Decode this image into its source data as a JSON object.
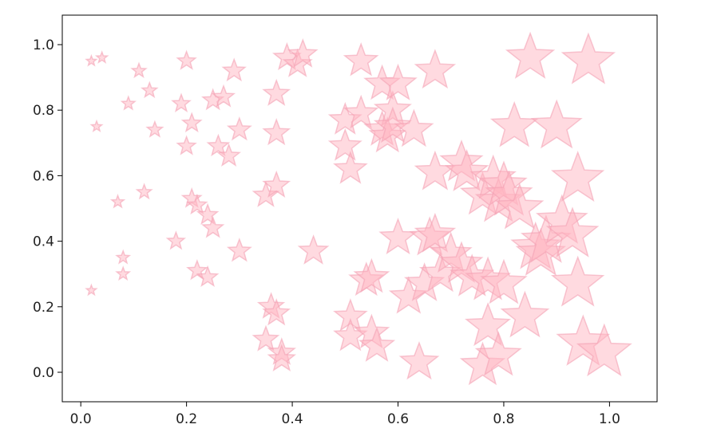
{
  "chart_data": {
    "type": "scatter",
    "marker": "star",
    "marker_color": "#ffb6c1",
    "marker_alpha": 0.5,
    "marker_edge_color": "#f4a2b4",
    "frame_color": "#000000",
    "grid": false,
    "legend": "none",
    "xlim": [
      -0.035,
      1.09
    ],
    "ylim": [
      -0.09,
      1.09
    ],
    "x_ticks": [
      0.0,
      0.2,
      0.4,
      0.6,
      0.8,
      1.0
    ],
    "x_tick_labels": [
      "0.0",
      "0.2",
      "0.4",
      "0.6",
      "0.8",
      "1.0"
    ],
    "y_ticks": [
      0.0,
      0.2,
      0.4,
      0.6,
      0.8,
      1.0
    ],
    "y_tick_labels": [
      "0.0",
      "0.2",
      "0.4",
      "0.6",
      "0.8",
      "1.0"
    ],
    "note_size": "marker size grows with x value",
    "points": [
      {
        "x": 0.02,
        "y": 0.95
      },
      {
        "x": 0.04,
        "y": 0.96
      },
      {
        "x": 0.03,
        "y": 0.75
      },
      {
        "x": 0.02,
        "y": 0.25
      },
      {
        "x": 0.07,
        "y": 0.52
      },
      {
        "x": 0.08,
        "y": 0.35
      },
      {
        "x": 0.08,
        "y": 0.3
      },
      {
        "x": 0.09,
        "y": 0.82
      },
      {
        "x": 0.11,
        "y": 0.92
      },
      {
        "x": 0.12,
        "y": 0.55
      },
      {
        "x": 0.13,
        "y": 0.86
      },
      {
        "x": 0.14,
        "y": 0.74
      },
      {
        "x": 0.18,
        "y": 0.4
      },
      {
        "x": 0.19,
        "y": 0.82
      },
      {
        "x": 0.2,
        "y": 0.95
      },
      {
        "x": 0.2,
        "y": 0.69
      },
      {
        "x": 0.21,
        "y": 0.76
      },
      {
        "x": 0.21,
        "y": 0.53
      },
      {
        "x": 0.22,
        "y": 0.51
      },
      {
        "x": 0.22,
        "y": 0.31
      },
      {
        "x": 0.24,
        "y": 0.29
      },
      {
        "x": 0.24,
        "y": 0.48
      },
      {
        "x": 0.25,
        "y": 0.44
      },
      {
        "x": 0.25,
        "y": 0.83
      },
      {
        "x": 0.26,
        "y": 0.69
      },
      {
        "x": 0.27,
        "y": 0.84
      },
      {
        "x": 0.28,
        "y": 0.66
      },
      {
        "x": 0.29,
        "y": 0.92
      },
      {
        "x": 0.3,
        "y": 0.74
      },
      {
        "x": 0.3,
        "y": 0.37
      },
      {
        "x": 0.35,
        "y": 0.54
      },
      {
        "x": 0.35,
        "y": 0.1
      },
      {
        "x": 0.36,
        "y": 0.2
      },
      {
        "x": 0.37,
        "y": 0.57
      },
      {
        "x": 0.37,
        "y": 0.85
      },
      {
        "x": 0.37,
        "y": 0.73
      },
      {
        "x": 0.37,
        "y": 0.18
      },
      {
        "x": 0.38,
        "y": 0.06
      },
      {
        "x": 0.38,
        "y": 0.04
      },
      {
        "x": 0.39,
        "y": 0.96
      },
      {
        "x": 0.41,
        "y": 0.94
      },
      {
        "x": 0.42,
        "y": 0.97
      },
      {
        "x": 0.44,
        "y": 0.37
      },
      {
        "x": 0.5,
        "y": 0.77
      },
      {
        "x": 0.5,
        "y": 0.69
      },
      {
        "x": 0.51,
        "y": 0.62
      },
      {
        "x": 0.51,
        "y": 0.17
      },
      {
        "x": 0.51,
        "y": 0.11
      },
      {
        "x": 0.53,
        "y": 0.95
      },
      {
        "x": 0.53,
        "y": 0.79
      },
      {
        "x": 0.54,
        "y": 0.28
      },
      {
        "x": 0.55,
        "y": 0.29
      },
      {
        "x": 0.55,
        "y": 0.12
      },
      {
        "x": 0.56,
        "y": 0.08
      },
      {
        "x": 0.57,
        "y": 0.88
      },
      {
        "x": 0.57,
        "y": 0.74
      },
      {
        "x": 0.58,
        "y": 0.72
      },
      {
        "x": 0.59,
        "y": 0.8
      },
      {
        "x": 0.59,
        "y": 0.75
      },
      {
        "x": 0.6,
        "y": 0.88
      },
      {
        "x": 0.6,
        "y": 0.41
      },
      {
        "x": 0.62,
        "y": 0.23
      },
      {
        "x": 0.63,
        "y": 0.74
      },
      {
        "x": 0.64,
        "y": 0.03
      },
      {
        "x": 0.65,
        "y": 0.27
      },
      {
        "x": 0.66,
        "y": 0.41
      },
      {
        "x": 0.67,
        "y": 0.92
      },
      {
        "x": 0.67,
        "y": 0.61
      },
      {
        "x": 0.67,
        "y": 0.42
      },
      {
        "x": 0.68,
        "y": 0.3
      },
      {
        "x": 0.7,
        "y": 0.36
      },
      {
        "x": 0.72,
        "y": 0.64
      },
      {
        "x": 0.72,
        "y": 0.33
      },
      {
        "x": 0.73,
        "y": 0.61
      },
      {
        "x": 0.74,
        "y": 0.29
      },
      {
        "x": 0.76,
        "y": 0.54
      },
      {
        "x": 0.76,
        "y": 0.02
      },
      {
        "x": 0.77,
        "y": 0.14
      },
      {
        "x": 0.77,
        "y": 0.28
      },
      {
        "x": 0.78,
        "y": 0.59
      },
      {
        "x": 0.79,
        "y": 0.52
      },
      {
        "x": 0.79,
        "y": 0.05
      },
      {
        "x": 0.8,
        "y": 0.27
      },
      {
        "x": 0.8,
        "y": 0.57
      },
      {
        "x": 0.81,
        "y": 0.54
      },
      {
        "x": 0.82,
        "y": 0.75
      },
      {
        "x": 0.83,
        "y": 0.5
      },
      {
        "x": 0.84,
        "y": 0.17
      },
      {
        "x": 0.85,
        "y": 0.96
      },
      {
        "x": 0.86,
        "y": 0.38
      },
      {
        "x": 0.87,
        "y": 0.36
      },
      {
        "x": 0.88,
        "y": 0.4
      },
      {
        "x": 0.9,
        "y": 0.75
      },
      {
        "x": 0.91,
        "y": 0.46
      },
      {
        "x": 0.93,
        "y": 0.42
      },
      {
        "x": 0.94,
        "y": 0.59
      },
      {
        "x": 0.94,
        "y": 0.27
      },
      {
        "x": 0.95,
        "y": 0.09
      },
      {
        "x": 0.96,
        "y": 0.95
      },
      {
        "x": 0.99,
        "y": 0.06
      }
    ]
  }
}
